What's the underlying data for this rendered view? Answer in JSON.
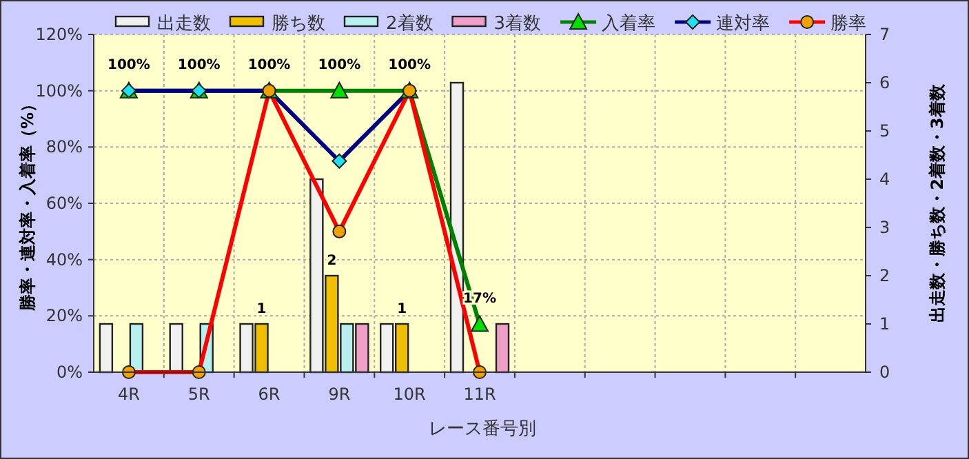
{
  "chart_data": {
    "type": "bar",
    "xlabel": "レース番号別",
    "ylabel": "勝率・連対率・入着率（%）",
    "y2label": "出走数・勝ち数・2着数・3着数",
    "categories": [
      "4R",
      "5R",
      "6R",
      "9R",
      "10R",
      "11R",
      null,
      null,
      null,
      null,
      null
    ],
    "series": [
      {
        "name": "出走数",
        "axis": "y2",
        "color": "#f0f0f0",
        "values": [
          1,
          1,
          1,
          4,
          1,
          6,
          null,
          null,
          null,
          null,
          null
        ]
      },
      {
        "name": "勝ち数",
        "axis": "y2",
        "color": "#f0c000",
        "values": [
          null,
          null,
          1,
          2,
          1,
          null,
          null,
          null,
          null,
          null,
          null
        ],
        "value_labels": [
          null,
          null,
          "1",
          "2",
          "1",
          null,
          null,
          null,
          null,
          null,
          null
        ]
      },
      {
        "name": "2着数",
        "axis": "y2",
        "color": "#b8f0f0",
        "values": [
          1,
          1,
          null,
          1,
          null,
          null,
          null,
          null,
          null,
          null,
          null
        ]
      },
      {
        "name": "3着数",
        "axis": "y2",
        "color": "#f0a0c8",
        "values": [
          null,
          null,
          null,
          1,
          null,
          1,
          null,
          null,
          null,
          null,
          null
        ]
      },
      {
        "name": "入着率",
        "type": "line",
        "color": "#008000",
        "marker": "triangle",
        "values": [
          100,
          100,
          100,
          100,
          100,
          17,
          null,
          null,
          null,
          null,
          null
        ],
        "value_labels": [
          "100%",
          "100%",
          "100%",
          "100%",
          "100%",
          "17%",
          null,
          null,
          null,
          null,
          null
        ]
      },
      {
        "name": "連対率",
        "type": "line",
        "color": "#000080",
        "marker": "diamond",
        "values": [
          100,
          100,
          100,
          75,
          100,
          null,
          null,
          null,
          null,
          null,
          null
        ]
      },
      {
        "name": "勝率",
        "type": "line",
        "color": "#ff0000",
        "marker": "circle",
        "values": [
          0,
          0,
          100,
          50,
          100,
          0,
          null,
          null,
          null,
          null,
          null
        ]
      }
    ],
    "ylim": [
      0,
      120
    ],
    "yticks": [
      {
        "value": 0,
        "label": "0%"
      },
      {
        "value": 20,
        "label": "20%"
      },
      {
        "value": 40,
        "label": "40%"
      },
      {
        "value": 60,
        "label": "60%"
      },
      {
        "value": 80,
        "label": "80%"
      },
      {
        "value": 100,
        "label": "100%"
      },
      {
        "value": 120,
        "label": "120%"
      }
    ],
    "y2lim": [
      0,
      7
    ],
    "y2ticks": [
      0,
      1,
      2,
      3,
      4,
      5,
      6,
      7
    ],
    "grid": true,
    "legend": "top"
  }
}
